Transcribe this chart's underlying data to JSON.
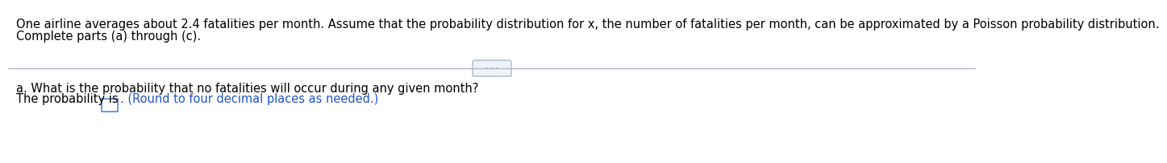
{
  "line1": "One airline averages about 2.4 fatalities per month. Assume that the probability distribution for x, the number of fatalities per month, can be approximated by a Poisson probability distribution.",
  "line2": "Complete parts (a) through (c).",
  "part_a_label": "a. What is the probability that no fatalities will occur during any given month?",
  "prob_text_before": "The probability is ",
  "prob_text_after": ". (Round to four decimal places as needed.)",
  "background_color": "#ffffff",
  "text_color": "#000000",
  "blue_text_color": "#2255cc",
  "divider_color": "#b0b8c8",
  "dots_label": "· · ·",
  "font_size_main": 10.5,
  "box_border_color": "#5588cc"
}
